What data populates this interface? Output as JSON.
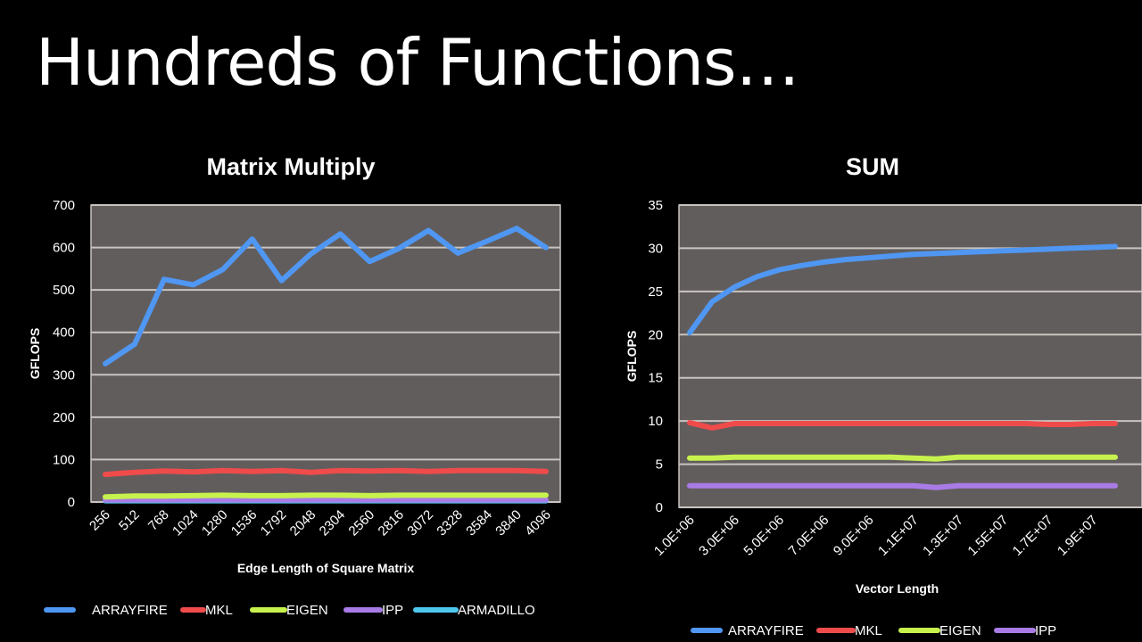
{
  "slide": {
    "title": "Hundreds of Functions…"
  },
  "colors": {
    "background": "#000000",
    "plot_bg": "#625d5d",
    "gridline": "#c9c4c0",
    "ARRAYFIRE": "#4f97f2",
    "MKL": "#ef4b4b",
    "EIGEN": "#c7f24e",
    "IPP": "#a97be6",
    "ARMADILLO": "#4ec8ee"
  },
  "chart_data": [
    {
      "type": "line",
      "title": "Matrix Multiply",
      "xlabel": "Edge Length of Square Matrix",
      "ylabel": "GFLOPS",
      "ylim": [
        0,
        700
      ],
      "yticks": [
        0,
        100,
        200,
        300,
        400,
        500,
        600,
        700
      ],
      "grid": true,
      "legend_position": "bottom",
      "categories": [
        "256",
        "512",
        "768",
        "1024",
        "1280",
        "1536",
        "1792",
        "2048",
        "2304",
        "2560",
        "2816",
        "3072",
        "3328",
        "3584",
        "3840",
        "4096"
      ],
      "series": [
        {
          "name": "ARRAYFIRE",
          "values": [
            326,
            372,
            525,
            512,
            548,
            620,
            522,
            585,
            632,
            567,
            598,
            640,
            587,
            615,
            645,
            600
          ]
        },
        {
          "name": "MKL",
          "values": [
            65,
            70,
            73,
            71,
            74,
            72,
            74,
            70,
            74,
            73,
            74,
            72,
            74,
            74,
            74,
            72
          ]
        },
        {
          "name": "EIGEN",
          "values": [
            12,
            14,
            14,
            15,
            16,
            15,
            15,
            16,
            16,
            15,
            16,
            16,
            16,
            16,
            16,
            16
          ]
        },
        {
          "name": "IPP",
          "values": [
            5,
            5,
            5,
            5,
            5,
            5,
            5,
            5,
            5,
            5,
            5,
            5,
            5,
            5,
            5,
            5
          ]
        },
        {
          "name": "ARMADILLO",
          "values": [
            3,
            3,
            3,
            3,
            3,
            3,
            3,
            3,
            3,
            3,
            3,
            3,
            3,
            3,
            3,
            3
          ]
        }
      ]
    },
    {
      "type": "line",
      "title": "SUM",
      "xlabel": "Vector Length",
      "ylabel": "GFLOPS",
      "ylim": [
        0,
        35
      ],
      "yticks": [
        0,
        5,
        10,
        15,
        20,
        25,
        30,
        35
      ],
      "grid": true,
      "legend_position": "bottom",
      "x": [
        "1.0E+06",
        "2.0E+06",
        "3.0E+06",
        "4.0E+06",
        "5.0E+06",
        "6.0E+06",
        "7.0E+06",
        "8.0E+06",
        "9.0E+06",
        "1.0E+07",
        "1.1E+07",
        "1.2E+07",
        "1.3E+07",
        "1.4E+07",
        "1.5E+07",
        "1.6E+07",
        "1.7E+07",
        "1.8E+07",
        "1.9E+07",
        "2.0E+07"
      ],
      "tick_labels": [
        "1.0E+06",
        "3.0E+06",
        "5.0E+06",
        "7.0E+06",
        "9.0E+06",
        "1.1E+07",
        "1.3E+07",
        "1.5E+07",
        "1.7E+07",
        "1.9E+07"
      ],
      "series": [
        {
          "name": "ARRAYFIRE",
          "values": [
            20.2,
            23.8,
            25.5,
            26.7,
            27.5,
            28.0,
            28.4,
            28.7,
            28.9,
            29.1,
            29.3,
            29.4,
            29.5,
            29.6,
            29.7,
            29.8,
            29.9,
            30.0,
            30.1,
            30.2
          ]
        },
        {
          "name": "MKL",
          "values": [
            9.8,
            9.2,
            9.7,
            9.7,
            9.7,
            9.7,
            9.7,
            9.7,
            9.7,
            9.7,
            9.7,
            9.7,
            9.7,
            9.7,
            9.7,
            9.7,
            9.6,
            9.6,
            9.7,
            9.7
          ]
        },
        {
          "name": "EIGEN",
          "values": [
            5.7,
            5.7,
            5.8,
            5.8,
            5.8,
            5.8,
            5.8,
            5.8,
            5.8,
            5.8,
            5.7,
            5.6,
            5.8,
            5.8,
            5.8,
            5.8,
            5.8,
            5.8,
            5.8,
            5.8
          ]
        },
        {
          "name": "IPP",
          "values": [
            2.5,
            2.5,
            2.5,
            2.5,
            2.5,
            2.5,
            2.5,
            2.5,
            2.5,
            2.5,
            2.5,
            2.3,
            2.5,
            2.5,
            2.5,
            2.5,
            2.5,
            2.5,
            2.5,
            2.5
          ]
        }
      ]
    }
  ]
}
